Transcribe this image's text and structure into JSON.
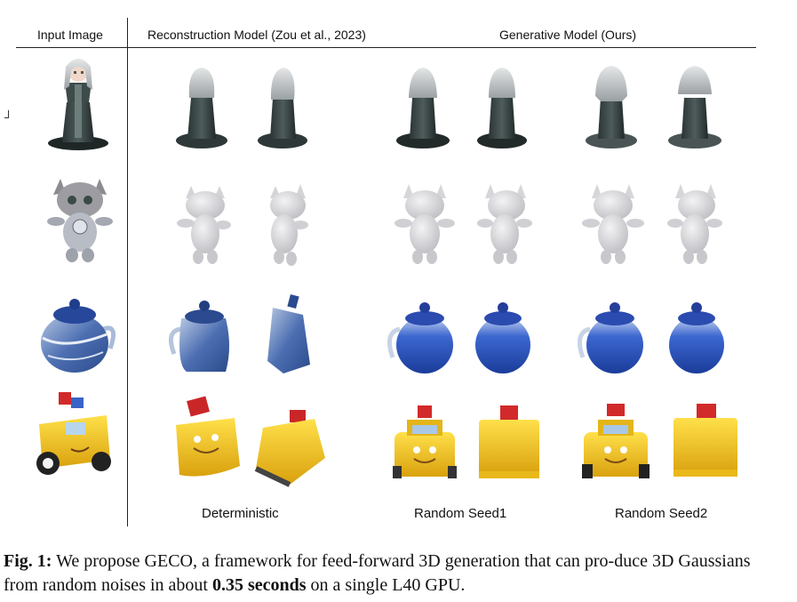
{
  "headers": {
    "input": "Input Image",
    "reconstruction": "Reconstruction Model (Zou et al., 2023)",
    "generative": "Generative Model (Ours)"
  },
  "bottom_labels": {
    "deterministic": "Deterministic",
    "seed1": "Random Seed1",
    "seed2": "Random Seed2"
  },
  "rows": [
    {
      "object": "figurine"
    },
    {
      "object": "cat"
    },
    {
      "object": "teapot"
    },
    {
      "object": "toy-truck"
    }
  ],
  "colors": {
    "figurine": "#3b4a4a",
    "cat": "#c8c8cc",
    "teapot": "#2c56c4",
    "truck": "#f2c21c",
    "truck_red": "#d22a2a"
  },
  "caption": {
    "label": "Fig. 1:",
    "text_part1": " We propose GECO, a framework for feed-forward 3D generation that can pro-duce 3D Gaussians from random noises in about ",
    "bold": "0.35 seconds",
    "text_part2": " on a single L40 GPU."
  }
}
